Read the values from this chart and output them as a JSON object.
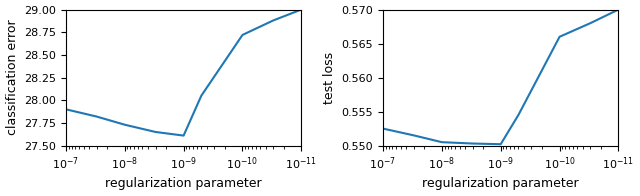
{
  "left_x": [
    1e-07,
    3e-08,
    1e-08,
    3e-09,
    1e-09,
    5e-10,
    1e-10,
    3e-11,
    1e-11
  ],
  "left_y": [
    27.9,
    27.82,
    27.73,
    27.65,
    27.61,
    28.05,
    28.72,
    28.88,
    29.0
  ],
  "left_ylabel": "classification error",
  "left_xlabel": "regularization parameter",
  "left_ylim": [
    27.5,
    29.0
  ],
  "left_yticks": [
    27.5,
    27.75,
    28.0,
    28.25,
    28.5,
    28.75,
    29.0
  ],
  "right_x": [
    1e-07,
    3e-08,
    1e-08,
    3e-09,
    1e-09,
    5e-10,
    1e-10,
    3e-11,
    1e-11
  ],
  "right_y": [
    0.5525,
    0.5515,
    0.5505,
    0.5503,
    0.5502,
    0.5545,
    0.566,
    0.568,
    0.57
  ],
  "right_ylabel": "test loss",
  "right_xlabel": "regularization parameter",
  "right_ylim": [
    0.55,
    0.57
  ],
  "right_yticks": [
    0.55,
    0.555,
    0.56,
    0.565,
    0.57
  ],
  "line_color": "#1f77b4",
  "line_width": 1.5,
  "xlim_min": 1e-11,
  "xlim_max": 1e-07,
  "xticks": [
    1e-07,
    1e-08,
    1e-09,
    1e-10,
    1e-11
  ]
}
